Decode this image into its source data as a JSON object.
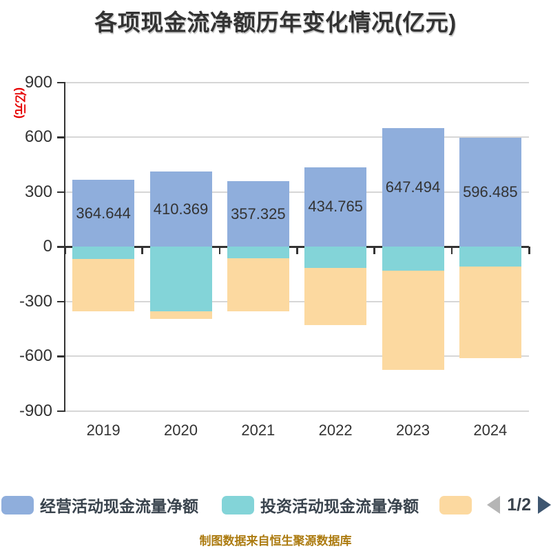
{
  "title": "各项现金流净额历年变化情况(亿元)",
  "source_note": "制图数据来自恒生聚源数据库",
  "source_note_color": "#AC7B10",
  "legend": {
    "items": [
      {
        "label": "经营活动现金流量净额",
        "color": "#8FAEDC"
      },
      {
        "label": "投资活动现金流量净额",
        "color": "#83D4D8"
      },
      {
        "label": "",
        "color": "#FCD9A0"
      }
    ],
    "pagination": {
      "text": "1/2",
      "prev_color": "#B5B5B5",
      "next_color": "#3E5670",
      "text_color": "#3A434D"
    }
  },
  "chart_data": {
    "type": "bar",
    "stacked": true,
    "title": "各项现金流净额历年变化情况(亿元)",
    "y_axis_name": "(亿元)",
    "y_axis_name_color": "#E60000",
    "ylim": [
      -900,
      900
    ],
    "y_ticks": [
      900,
      600,
      300,
      0,
      -300,
      -600,
      -900
    ],
    "grid": true,
    "gridline_color": "#D6D6D6",
    "axis_color": "#333333",
    "label_color": "#333333",
    "legend_position": "bottom",
    "categories": [
      "2019",
      "2020",
      "2021",
      "2022",
      "2023",
      "2024"
    ],
    "series": [
      {
        "name": "经营活动现金流量净额",
        "color": "#8FAEDC",
        "values": [
          364.644,
          410.369,
          357.325,
          434.765,
          647.494,
          596.485
        ],
        "data_labels": true
      },
      {
        "name": "投资活动现金流量净额",
        "color": "#83D4D8",
        "values": [
          -68,
          -356,
          -66,
          -116,
          -133,
          -111
        ],
        "data_labels": false,
        "estimated": true
      },
      {
        "name": "",
        "color": "#FCD9A0",
        "values": [
          -285,
          -42,
          -288,
          -315,
          -542,
          -502
        ],
        "data_labels": false,
        "estimated": true
      }
    ]
  }
}
